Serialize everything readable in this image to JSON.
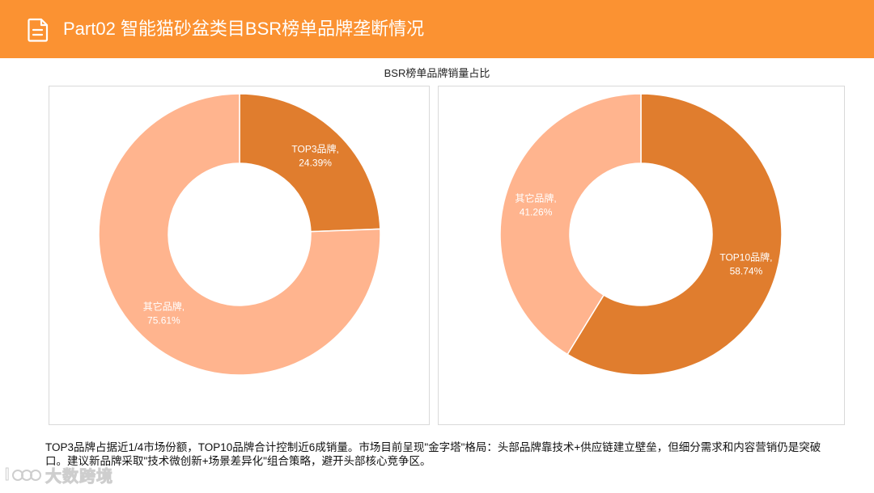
{
  "header": {
    "title": "Part02 智能猫砂盆类目BSR榜单品牌垄断情况",
    "icon": "document-icon",
    "background_color": "#fb9232"
  },
  "chart_title": "BSR榜单品牌销量占比",
  "chart_data": [
    {
      "type": "pie",
      "variant": "donut",
      "title": "",
      "categories": [
        "TOP3品牌",
        "其它品牌"
      ],
      "values": [
        24.39,
        75.61
      ],
      "value_labels": [
        "24.39%",
        "75.61%"
      ],
      "colors": [
        "#e07d2e",
        "#ffb48e"
      ],
      "unit": "%"
    },
    {
      "type": "pie",
      "variant": "donut",
      "title": "",
      "categories": [
        "TOP10品牌",
        "其它品牌"
      ],
      "values": [
        58.74,
        41.26
      ],
      "value_labels": [
        "58.74%",
        "41.26%"
      ],
      "colors": [
        "#e07d2e",
        "#ffb48e"
      ],
      "unit": "%"
    }
  ],
  "summary": "TOP3品牌占据近1/4市场份额，TOP10品牌合计控制近6成销量。市场目前呈现\"金字塔\"格局：头部品牌靠技术+供应链建立壁垒，但细分需求和内容营销仍是突破口。建议新品牌采取\"技术微创新+场景差异化\"组合策略，避开头部核心竞争区。",
  "watermark": {
    "text": "大数跨境",
    "icon": "watermark-logo-icon"
  }
}
